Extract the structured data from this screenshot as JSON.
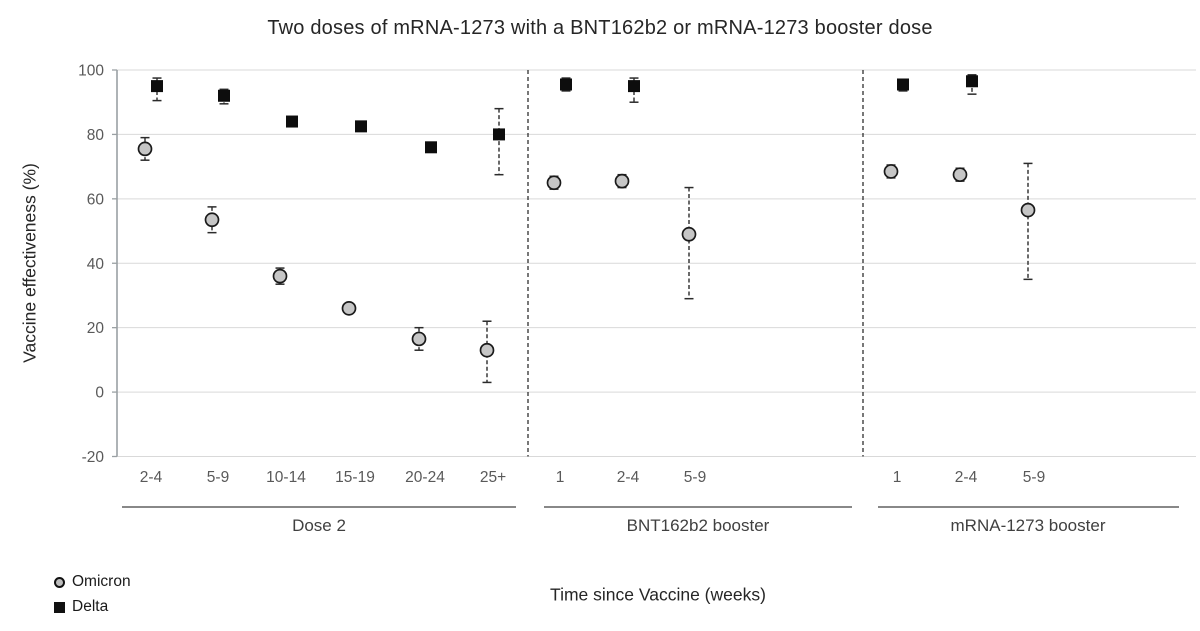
{
  "colors": {
    "omicron_fill": "#c6c6c6",
    "omicron_stroke": "#1a1a1a",
    "delta_fill": "#0d0d0d",
    "error_bar": "#2b2b2b",
    "gridline": "#d9d9d9",
    "axis_line": "#9aa0a3",
    "tick_text": "#595959"
  },
  "chart_data": {
    "type": "scatter",
    "title": "Two doses of mRNA-1273 with a BNT162b2 or mRNA-1273 booster dose",
    "xlabel": "Time since Vaccine (weeks)",
    "ylabel": "Vaccine effectiveness (%)",
    "ylim": [
      -20,
      100
    ],
    "yticks": [
      100,
      80,
      60,
      40,
      20,
      0,
      -20
    ],
    "grid": true,
    "legend": [
      "Omicron",
      "Delta"
    ],
    "legend_position": "bottom-left",
    "groups": [
      {
        "label": "Dose 2",
        "categories": [
          "2-4",
          "5-9",
          "10-14",
          "15-19",
          "20-24",
          "25+"
        ],
        "series": [
          {
            "name": "Omicron",
            "values": [
              75.5,
              53.5,
              36,
              26,
              16.5,
              13
            ],
            "ci_low": [
              72,
              49.5,
              33.5,
              24.5,
              13,
              3
            ],
            "ci_high": [
              79,
              57.5,
              38.5,
              27.5,
              20,
              22
            ]
          },
          {
            "name": "Delta",
            "values": [
              95,
              92,
              84,
              82.5,
              76,
              80
            ],
            "ci_low": [
              90.5,
              89.5,
              83,
              81.5,
              74.5,
              67.5
            ],
            "ci_high": [
              97.5,
              94,
              85.5,
              84,
              77.5,
              88
            ]
          }
        ]
      },
      {
        "label": "BNT162b2 booster",
        "categories": [
          "1",
          "2-4",
          "5-9"
        ],
        "series": [
          {
            "name": "Omicron",
            "values": [
              65,
              65.5,
              49
            ],
            "ci_low": [
              63,
              63.5,
              29
            ],
            "ci_high": [
              67,
              67.5,
              63.5
            ]
          },
          {
            "name": "Delta",
            "values": [
              95.5,
              95,
              null
            ],
            "ci_low": [
              93.5,
              90,
              null
            ],
            "ci_high": [
              97.5,
              97.5,
              null
            ]
          }
        ]
      },
      {
        "label": "mRNA-1273 booster",
        "categories": [
          "1",
          "2-4",
          "5-9"
        ],
        "series": [
          {
            "name": "Omicron",
            "values": [
              68.5,
              67.5,
              56.5
            ],
            "ci_low": [
              66.5,
              65.5,
              35
            ],
            "ci_high": [
              70.5,
              69.5,
              71
            ]
          },
          {
            "name": "Delta",
            "values": [
              95.5,
              96.5,
              null
            ],
            "ci_low": [
              93.5,
              92.5,
              null
            ],
            "ci_high": [
              97,
              98.5,
              null
            ]
          }
        ]
      }
    ]
  }
}
